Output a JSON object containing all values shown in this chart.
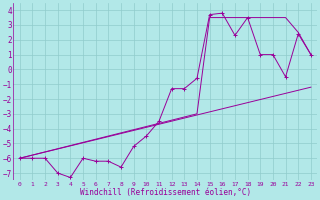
{
  "bg_color": "#b2e8e8",
  "grid_color": "#90cccc",
  "line_color": "#990099",
  "xlim": [
    -0.5,
    23.5
  ],
  "ylim": [
    -7.5,
    4.5
  ],
  "yticks": [
    -7,
    -6,
    -5,
    -4,
    -3,
    -2,
    -1,
    0,
    1,
    2,
    3,
    4
  ],
  "xticks": [
    0,
    1,
    2,
    3,
    4,
    5,
    6,
    7,
    8,
    9,
    10,
    11,
    12,
    13,
    14,
    15,
    16,
    17,
    18,
    19,
    20,
    21,
    22,
    23
  ],
  "xlabel": "Windchill (Refroidissement éolien,°C)",
  "line1_x": [
    0,
    1,
    2,
    3,
    4,
    5,
    6,
    7,
    8,
    9,
    10,
    11,
    12,
    13,
    14,
    15,
    16,
    17,
    18,
    19,
    20,
    21,
    22,
    23
  ],
  "line1_y": [
    -6.0,
    -6.0,
    -6.0,
    -7.0,
    -7.3,
    -6.0,
    -6.2,
    -6.2,
    -6.6,
    -5.2,
    -4.5,
    -3.5,
    -1.3,
    -1.3,
    -0.6,
    3.7,
    3.8,
    2.3,
    3.5,
    1.0,
    1.0,
    -0.5,
    2.4,
    1.0
  ],
  "line2_x": [
    0,
    23
  ],
  "line2_y": [
    -6.0,
    -1.2
  ],
  "line3_x": [
    0,
    14,
    15,
    21,
    22,
    23
  ],
  "line3_y": [
    -6.0,
    -3.0,
    3.5,
    3.5,
    2.5,
    1.0
  ]
}
